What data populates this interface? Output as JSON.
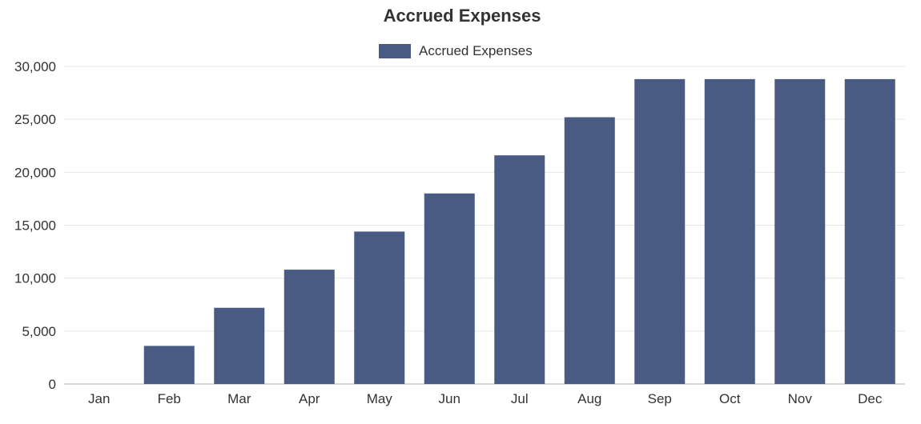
{
  "chart_data": {
    "type": "bar",
    "title": "Accrued Expenses",
    "xlabel": "",
    "ylabel": "",
    "categories": [
      "Jan",
      "Feb",
      "Mar",
      "Apr",
      "May",
      "Jun",
      "Jul",
      "Aug",
      "Sep",
      "Oct",
      "Nov",
      "Dec"
    ],
    "series": [
      {
        "name": "Accrued Expenses",
        "color": "#4a5b83",
        "values": [
          0,
          3600,
          7200,
          10800,
          14400,
          18000,
          21600,
          25200,
          28800,
          28800,
          28800,
          28800
        ]
      }
    ],
    "ylim": [
      0,
      30000
    ],
    "yticks": [
      0,
      5000,
      10000,
      15000,
      20000,
      25000,
      30000
    ],
    "ytick_labels": [
      "0",
      "5,000",
      "10,000",
      "15,000",
      "20,000",
      "25,000",
      "30,000"
    ],
    "grid": true,
    "legend_position": "top-center"
  }
}
